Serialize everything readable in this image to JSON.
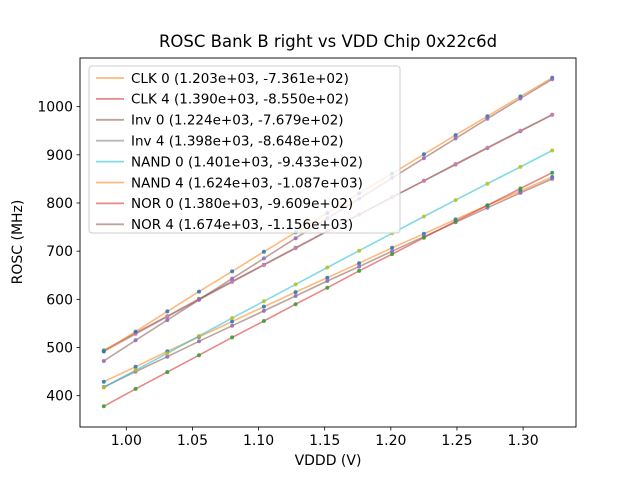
{
  "figure": {
    "title": "ROSC Bank B right vs VDD Chip 0x22c6d",
    "xlabel": "VDDD (V)",
    "ylabel": "ROSC (MHz)"
  },
  "chart_data": {
    "type": "line",
    "title": "ROSC Bank B right vs VDD Chip 0x22c6d",
    "xlabel": "VDDD (V)",
    "ylabel": "ROSC (MHz)",
    "xlim": [
      0.965,
      1.34
    ],
    "ylim": [
      335,
      1101
    ],
    "grid": false,
    "legend_position": "upper left",
    "x_tick_labels": [
      "1.00",
      "1.05",
      "1.10",
      "1.15",
      "1.20",
      "1.25",
      "1.30"
    ],
    "x_tick_values": [
      1.0,
      1.05,
      1.1,
      1.15,
      1.2,
      1.25,
      1.3
    ],
    "y_tick_labels": [
      "400",
      "500",
      "600",
      "700",
      "800",
      "900",
      "1000"
    ],
    "y_tick_values": [
      400,
      500,
      600,
      700,
      800,
      900,
      1000
    ],
    "x": [
      0.983,
      1.007,
      1.031,
      1.055,
      1.08,
      1.104,
      1.128,
      1.152,
      1.176,
      1.201,
      1.225,
      1.249,
      1.273,
      1.298,
      1.322
    ],
    "series": [
      {
        "name": "CLK 0",
        "label": "CLK 0 (1.203e+03, -7.361e+02)",
        "fit_slope": 1203.0,
        "fit_intercept": -736.1,
        "line_color": "#ff7f0e",
        "marker_color": "#1f77b4",
        "y": [
          429,
          460,
          492,
          522,
          554,
          585,
          615,
          645,
          675,
          707,
          736,
          766,
          795,
          825,
          854
        ]
      },
      {
        "name": "CLK 4",
        "label": "CLK 4 (1.390e+03, -8.550e+02)",
        "fit_slope": 1390.0,
        "fit_intercept": -855.0,
        "line_color": "#d62728",
        "marker_color": "#2ca02c",
        "y": [
          494,
          530,
          565,
          601,
          637,
          672,
          707,
          742,
          776,
          812,
          846,
          880,
          914,
          949,
          983
        ]
      },
      {
        "name": "Inv 0",
        "label": "Inv 0 (1.224e+03, -7.679e+02)",
        "fit_slope": 1224.0,
        "fit_intercept": -767.9,
        "line_color": "#8c564b",
        "marker_color": "#9467bd",
        "y": [
          418,
          450,
          481,
          513,
          545,
          576,
          607,
          638,
          668,
          700,
          730,
          760,
          790,
          821,
          850
        ]
      },
      {
        "name": "Inv 4",
        "label": "Inv 4 (1.398e+03, -8.648e+02)",
        "fit_slope": 1398.0,
        "fit_intercept": -864.8,
        "line_color": "#7f7f7f",
        "marker_color": "#e377c2",
        "y": [
          492,
          528,
          564,
          599,
          636,
          671,
          706,
          741,
          776,
          812,
          846,
          881,
          915,
          950,
          983
        ]
      },
      {
        "name": "NAND 0",
        "label": "NAND 0 (1.401e+03, -9.433e+02)",
        "fit_slope": 1401.0,
        "fit_intercept": -943.3,
        "line_color": "#17becf",
        "marker_color": "#bcbd22",
        "y": [
          417,
          453,
          488,
          524,
          561,
          596,
          631,
          666,
          701,
          737,
          772,
          806,
          840,
          875,
          909
        ]
      },
      {
        "name": "NAND 4",
        "label": "NAND 4 (1.624e+03, -1.087e+03)",
        "fit_slope": 1624.0,
        "fit_intercept": -1087.0,
        "line_color": "#ff7f0e",
        "marker_color": "#1f77b4",
        "y": [
          492,
          533,
          575,
          616,
          658,
          699,
          739,
          779,
          820,
          861,
          901,
          941,
          980,
          1021,
          1060
        ]
      },
      {
        "name": "NOR 0",
        "label": "NOR 0 (1.380e+03, -9.609e+02)",
        "fit_slope": 1380.0,
        "fit_intercept": -960.9,
        "line_color": "#d62728",
        "marker_color": "#2ca02c",
        "y": [
          378,
          414,
          449,
          484,
          521,
          555,
          590,
          624,
          659,
          694,
          728,
          762,
          795,
          830,
          863
        ]
      },
      {
        "name": "NOR 4",
        "label": "NOR 4 (1.674e+03, -1.156e+03)",
        "fit_slope": 1674.0,
        "fit_intercept": -1156.0,
        "line_color": "#8c564b",
        "marker_color": "#9467bd",
        "y": [
          472,
          515,
          557,
          599,
          643,
          685,
          727,
          768,
          809,
          852,
          893,
          934,
          975,
          1017,
          1057
        ]
      }
    ]
  }
}
